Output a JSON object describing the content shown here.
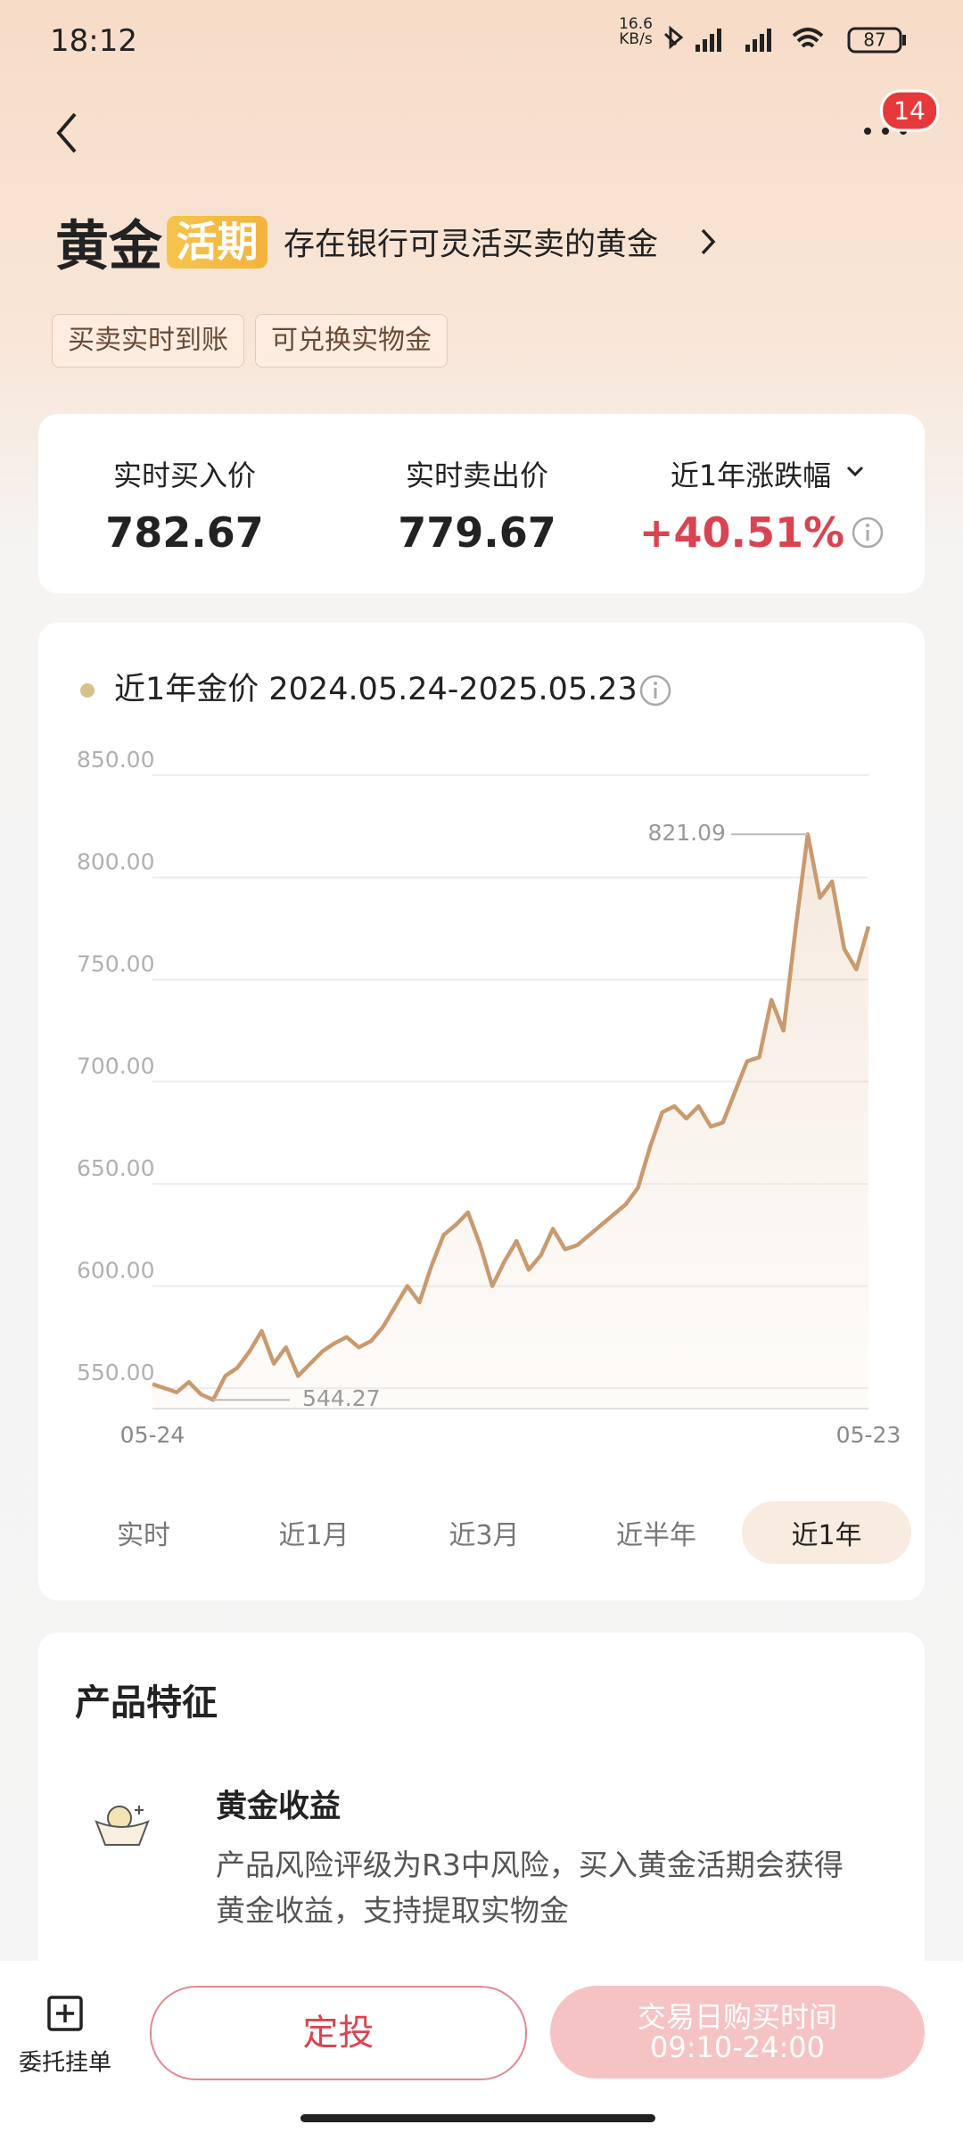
{
  "status_bar": {
    "time": "18:12",
    "net_speed": "16.6",
    "net_unit": "KB/s",
    "battery": "87"
  },
  "header": {
    "badge": "14",
    "title": "黄金",
    "tag": "活期",
    "subtitle": "存在银行可灵活买卖的黄金",
    "features": [
      "买卖实时到账",
      "可兑换实物金"
    ]
  },
  "prices": {
    "buy_label": "实时买入价",
    "buy": 782.67,
    "sell_label": "实时卖出价",
    "sell": 779.67,
    "change_label": "近1年涨跌幅",
    "change": "+40.51%"
  },
  "chart_data": {
    "type": "line",
    "title": "近1年金价 2024.05.24-2025.05.23",
    "categories": [
      "05-24",
      null,
      null,
      null,
      null,
      null,
      null,
      null,
      null,
      null,
      null,
      null,
      null,
      null,
      null,
      null,
      null,
      null,
      null,
      null,
      null,
      null,
      null,
      null,
      null,
      null,
      null,
      null,
      null,
      null,
      null,
      null,
      null,
      null,
      null,
      null,
      null,
      null,
      null,
      null,
      null,
      null,
      null,
      null,
      null,
      null,
      null,
      null,
      null,
      null,
      null,
      null,
      null,
      null,
      null,
      null,
      null,
      null,
      null,
      "05-23"
    ],
    "values": [
      552,
      550,
      548,
      553,
      547,
      544.27,
      556,
      560,
      568,
      578,
      562,
      570,
      556,
      562,
      568,
      572,
      575,
      570,
      573,
      580,
      590,
      600,
      592,
      610,
      625,
      630,
      636,
      620,
      600,
      612,
      622,
      608,
      615,
      628,
      618,
      620,
      625,
      630,
      635,
      640,
      648,
      668,
      685,
      688,
      682,
      688,
      678,
      680,
      695,
      710,
      712,
      740,
      725,
      775,
      821.09,
      790,
      798,
      765,
      755,
      776
    ],
    "color": "#c99a6e",
    "ylim": [
      540,
      850
    ],
    "yticks": [
      {
        "value": 550,
        "label": "550.00"
      },
      {
        "value": 600,
        "label": "600.00"
      },
      {
        "value": 650,
        "label": "650.00"
      },
      {
        "value": 700,
        "label": "700.00"
      },
      {
        "value": 750,
        "label": "750.00"
      },
      {
        "value": 800,
        "label": "800.00"
      },
      {
        "value": 850,
        "label": "850.00"
      }
    ],
    "grid": true
  },
  "tabs": [
    "实时",
    "近1月",
    "近3月",
    "近半年",
    "近1年"
  ],
  "active_tab": 4,
  "product": {
    "title": "产品特征",
    "item_title": "黄金收益",
    "item_desc": [
      "产品风险评级为R3中风险，买入黄金活期会获得",
      "黄金收益，支持提取实物金"
    ]
  },
  "bottom_bar": {
    "entrust": "委托挂单",
    "invest": "定投",
    "buy_time_label": "交易日购买时间",
    "buy_time": "09:10-24:00"
  }
}
